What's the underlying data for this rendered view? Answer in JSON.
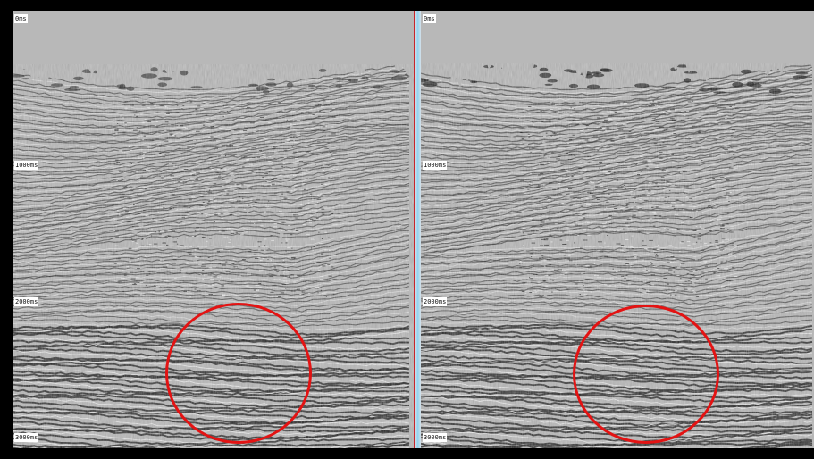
{
  "panels": [
    {
      "start_label": "0ms",
      "trace_labels": [
        [
          "142",
          "560"
        ],
        [
          "182",
          "560"
        ],
        [
          "222",
          "560"
        ],
        [
          "262",
          "560"
        ],
        [
          "302",
          "560"
        ],
        [
          "342",
          "560"
        ],
        [
          "382",
          "560"
        ],
        [
          "422",
          "560"
        ],
        [
          "462",
          "560"
        ],
        [
          "502",
          "560"
        ],
        [
          "542",
          "560"
        ],
        [
          "582",
          "560"
        ]
      ],
      "time_labels": [
        "1000ms",
        "2000ms",
        "3000ms"
      ]
    },
    {
      "start_label": "0ms",
      "trace_labels": [
        [
          "137",
          "560"
        ],
        [
          "177",
          "560"
        ],
        [
          "217",
          "560"
        ],
        [
          "257",
          "560"
        ],
        [
          "297",
          "560"
        ],
        [
          "337",
          "560"
        ],
        [
          "377",
          "560"
        ],
        [
          "417",
          "560"
        ],
        [
          "457",
          "560"
        ],
        [
          "497",
          "560"
        ],
        [
          "537",
          "560"
        ],
        [
          "577",
          "560"
        ]
      ],
      "time_labels": [
        "1000ms",
        "2000ms",
        "3000ms"
      ]
    }
  ],
  "colors": {
    "highlight_circle": "#e31313",
    "panel_divider": "#c8242a",
    "trace_marker": "#d01818"
  }
}
